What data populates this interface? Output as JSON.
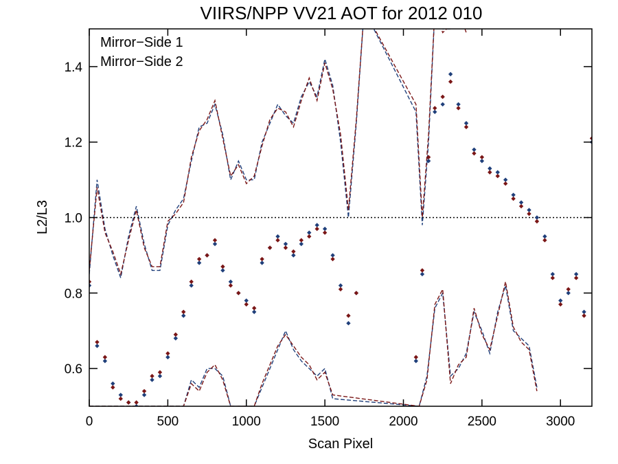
{
  "chart_data": {
    "type": "scatter",
    "title": "VIIRS/NPP VV21 AOT for 2012 010",
    "xlabel": "Scan Pixel",
    "ylabel": "L2/L3",
    "xlim": [
      0,
      3200
    ],
    "ylim": [
      0.5,
      1.5
    ],
    "x_ticks": [
      0,
      500,
      1000,
      1500,
      2000,
      2500,
      3000
    ],
    "y_ticks": [
      0.6,
      0.8,
      1.0,
      1.2,
      1.4
    ],
    "x_tick_labels": [
      "0",
      "500",
      "1000",
      "1500",
      "2000",
      "2500",
      "3000"
    ],
    "y_tick_labels": [
      "0.6",
      "0.8",
      "1.0",
      "1.2",
      "1.4"
    ],
    "reference_line": 1.0,
    "legend_position": "top-left",
    "series": [
      {
        "name": "Mirror−Side 1",
        "color": "#1f3f7a",
        "x": [
          0,
          50,
          100,
          150,
          200,
          250,
          300,
          350,
          400,
          450,
          500,
          550,
          600,
          650,
          700,
          750,
          800,
          850,
          900,
          950,
          1000,
          1050,
          1100,
          1150,
          1200,
          1250,
          1300,
          1350,
          1400,
          1450,
          1500,
          1550,
          1600,
          1650,
          1700,
          2080,
          2120,
          2160,
          2200,
          2250,
          2300,
          2350,
          2400,
          2450,
          2500,
          2550,
          2600,
          2650,
          2700,
          2750,
          2800,
          2850,
          2900,
          2950,
          3000,
          3050,
          3100,
          3150,
          3200
        ],
        "values": [
          0.82,
          0.66,
          0.62,
          0.56,
          0.53,
          0.51,
          0.5,
          0.53,
          0.57,
          0.58,
          0.63,
          0.68,
          0.74,
          0.82,
          0.88,
          0.9,
          0.93,
          0.86,
          0.83,
          0.8,
          0.78,
          0.75,
          0.88,
          0.92,
          0.95,
          0.93,
          0.9,
          0.93,
          0.96,
          0.98,
          0.97,
          0.9,
          0.82,
          0.72,
          0.8,
          0.62,
          0.85,
          1.15,
          1.28,
          1.3,
          1.38,
          1.3,
          1.25,
          1.18,
          1.15,
          1.13,
          1.12,
          1.1,
          1.06,
          1.04,
          1.02,
          1.0,
          0.95,
          0.85,
          0.78,
          0.8,
          0.85,
          0.75,
          1.2
        ]
      },
      {
        "name": "Mirror−Side 2",
        "color": "#7a1616",
        "x": [
          0,
          50,
          100,
          150,
          200,
          250,
          300,
          350,
          400,
          450,
          500,
          550,
          600,
          650,
          700,
          750,
          800,
          850,
          900,
          950,
          1000,
          1050,
          1100,
          1150,
          1200,
          1250,
          1300,
          1350,
          1400,
          1450,
          1500,
          1550,
          1600,
          1650,
          1700,
          2080,
          2120,
          2160,
          2200,
          2250,
          2300,
          2350,
          2400,
          2450,
          2500,
          2550,
          2600,
          2650,
          2700,
          2750,
          2800,
          2850,
          2900,
          2950,
          3000,
          3050,
          3100,
          3150,
          3200
        ],
        "values": [
          0.83,
          0.67,
          0.63,
          0.55,
          0.52,
          0.51,
          0.51,
          0.54,
          0.58,
          0.59,
          0.64,
          0.69,
          0.75,
          0.83,
          0.89,
          0.9,
          0.94,
          0.87,
          0.82,
          0.8,
          0.77,
          0.76,
          0.89,
          0.92,
          0.94,
          0.92,
          0.91,
          0.94,
          0.95,
          0.97,
          0.96,
          0.89,
          0.81,
          0.74,
          0.8,
          0.63,
          0.86,
          1.16,
          1.29,
          1.32,
          1.36,
          1.29,
          1.24,
          1.17,
          1.16,
          1.12,
          1.11,
          1.09,
          1.05,
          1.03,
          1.01,
          0.99,
          0.94,
          0.84,
          0.77,
          0.81,
          0.84,
          0.74,
          1.21
        ]
      }
    ],
    "envelopes": [
      {
        "color": "#1f3f7a",
        "upper_x": [
          0,
          50,
          100,
          150,
          200,
          250,
          300,
          350,
          400,
          450,
          500,
          550,
          600,
          650,
          700,
          750,
          800,
          850,
          900,
          950,
          1000,
          1050,
          1100,
          1150,
          1200,
          1250,
          1300,
          1350,
          1400,
          1450,
          1500,
          1550,
          1600,
          1650,
          1700,
          1750,
          2080,
          2120,
          2160,
          2200,
          2250,
          2300,
          2350,
          2400
        ],
        "upper_y": [
          0.85,
          1.1,
          0.97,
          0.9,
          0.84,
          0.95,
          1.03,
          0.93,
          0.86,
          0.86,
          0.98,
          1.02,
          1.05,
          1.15,
          1.24,
          1.25,
          1.3,
          1.22,
          1.1,
          1.15,
          1.1,
          1.1,
          1.2,
          1.25,
          1.3,
          1.27,
          1.25,
          1.32,
          1.36,
          1.32,
          1.42,
          1.35,
          1.2,
          1.0,
          1.25,
          1.55,
          1.28,
          0.98,
          1.2,
          1.55,
          1.5,
          1.5,
          1.55,
          1.5
        ],
        "lower_x": [
          0,
          100,
          200,
          300,
          400,
          500,
          600,
          650,
          700,
          750,
          800,
          850,
          900,
          950,
          1000,
          1050,
          1100,
          1150,
          1200,
          1250,
          1300,
          1350,
          1400,
          1450,
          1500,
          1550,
          2100,
          2150,
          2200,
          2250,
          2300,
          2350,
          2400,
          2450,
          2500,
          2550,
          2600,
          2650,
          2700,
          2750,
          2800,
          2850
        ],
        "lower_y": [
          0.5,
          0.5,
          0.5,
          0.5,
          0.5,
          0.5,
          0.5,
          0.57,
          0.55,
          0.6,
          0.6,
          0.58,
          0.5,
          0.5,
          0.5,
          0.5,
          0.55,
          0.6,
          0.65,
          0.7,
          0.65,
          0.62,
          0.6,
          0.58,
          0.6,
          0.52,
          0.5,
          0.58,
          0.76,
          0.8,
          0.58,
          0.6,
          0.64,
          0.75,
          0.7,
          0.64,
          0.75,
          0.82,
          0.7,
          0.68,
          0.66,
          0.55
        ]
      },
      {
        "color": "#7a1616",
        "upper_x": [
          0,
          50,
          100,
          150,
          200,
          250,
          300,
          350,
          400,
          450,
          500,
          550,
          600,
          650,
          700,
          750,
          800,
          850,
          900,
          950,
          1000,
          1050,
          1100,
          1150,
          1200,
          1250,
          1300,
          1350,
          1400,
          1450,
          1500,
          1550,
          1600,
          1650,
          1700,
          1750,
          2080,
          2120,
          2160,
          2200,
          2250,
          2300,
          2350,
          2400
        ],
        "upper_y": [
          0.86,
          1.08,
          0.96,
          0.91,
          0.85,
          0.94,
          1.02,
          0.92,
          0.87,
          0.87,
          0.99,
          1.01,
          1.04,
          1.16,
          1.23,
          1.26,
          1.31,
          1.21,
          1.11,
          1.14,
          1.09,
          1.11,
          1.19,
          1.26,
          1.29,
          1.28,
          1.24,
          1.31,
          1.37,
          1.31,
          1.41,
          1.34,
          1.22,
          1.02,
          1.26,
          1.55,
          1.3,
          1.0,
          1.22,
          1.55,
          1.49,
          1.51,
          1.55,
          1.49
        ],
        "lower_x": [
          0,
          100,
          200,
          300,
          400,
          500,
          600,
          650,
          700,
          750,
          800,
          850,
          900,
          950,
          1000,
          1050,
          1100,
          1150,
          1200,
          1250,
          1300,
          1350,
          1400,
          1450,
          1500,
          1550,
          2100,
          2150,
          2200,
          2250,
          2300,
          2350,
          2400,
          2450,
          2500,
          2550,
          2600,
          2650,
          2700,
          2750,
          2800,
          2850
        ],
        "lower_y": [
          0.5,
          0.5,
          0.5,
          0.5,
          0.5,
          0.5,
          0.5,
          0.56,
          0.54,
          0.59,
          0.61,
          0.57,
          0.5,
          0.5,
          0.5,
          0.5,
          0.56,
          0.61,
          0.66,
          0.69,
          0.66,
          0.63,
          0.61,
          0.57,
          0.59,
          0.53,
          0.5,
          0.57,
          0.77,
          0.81,
          0.56,
          0.61,
          0.63,
          0.76,
          0.69,
          0.65,
          0.74,
          0.83,
          0.71,
          0.67,
          0.65,
          0.54
        ]
      }
    ]
  }
}
